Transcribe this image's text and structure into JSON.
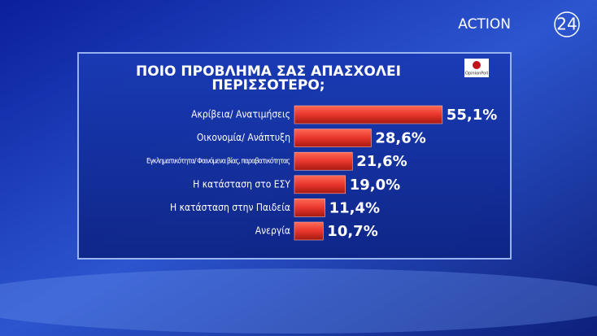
{
  "logo": {
    "text": "ACTION",
    "number": "24"
  },
  "chart_data": {
    "type": "bar",
    "orientation": "horizontal",
    "title": "ΠΟΙΟ ΠΡΟΒΛΗΜΑ ΣΑΣ ΑΠΑΣΧΟΛΕΙ ΠΕΡΙΣΣΟΤΕΡΟ;",
    "source_logo": "OpinionPoll",
    "categories": [
      "Ακρίβεια/ Ανατιμήσεις",
      "Οικονομία/ Ανάπτυξη",
      "Εγκληματικότητα/ Φαινόμενα βίας, παραβατικότητας",
      "Η κατάσταση στο ΕΣΥ",
      "Η κατάσταση στην Παιδεία",
      "Ανεργία"
    ],
    "values": [
      55.1,
      28.6,
      21.6,
      19.0,
      11.4,
      10.7
    ],
    "value_labels": [
      "55,1%",
      "28,6%",
      "21,6%",
      "19,0%",
      "11,4%",
      "10,7%"
    ],
    "color": "#e8362c"
  }
}
